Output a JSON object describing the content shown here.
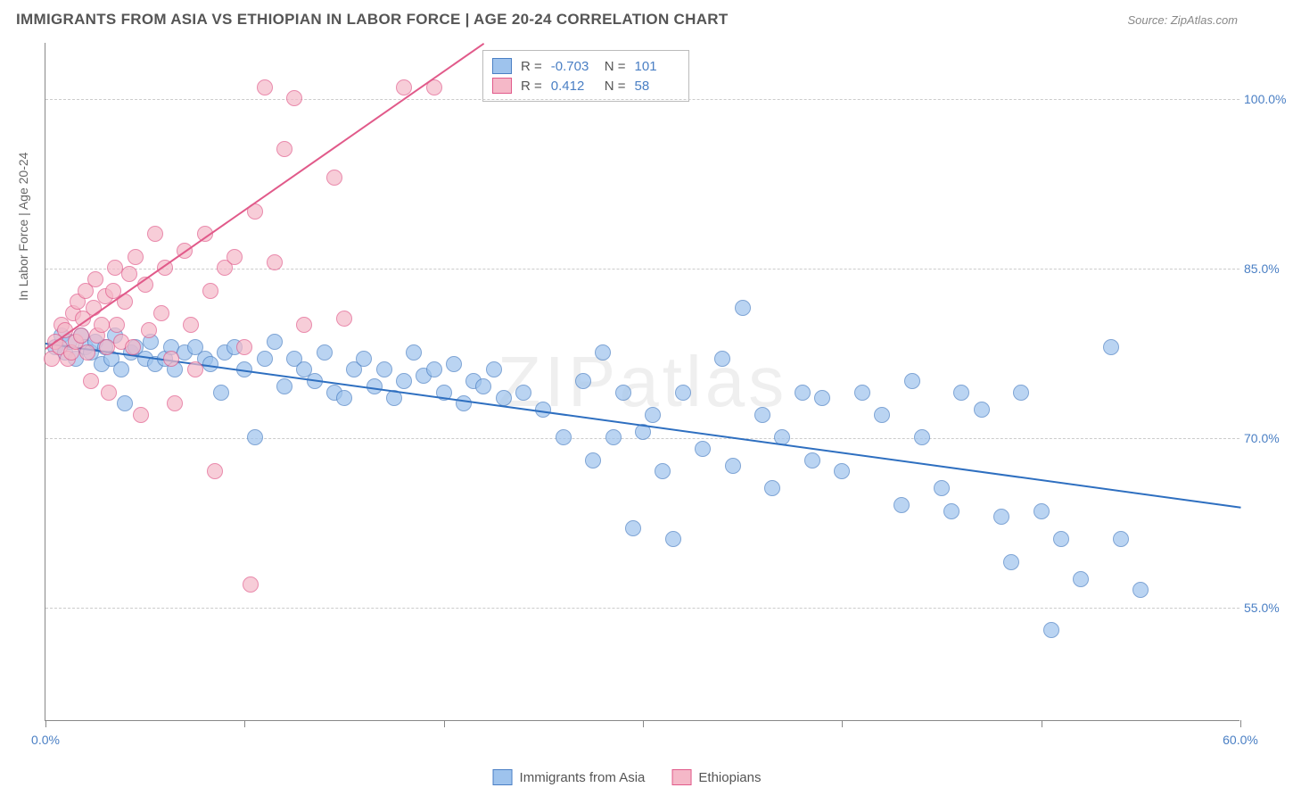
{
  "title": "IMMIGRANTS FROM ASIA VS ETHIOPIAN IN LABOR FORCE | AGE 20-24 CORRELATION CHART",
  "source": "Source: ZipAtlas.com",
  "watermark": "ZIPatlas",
  "ylabel": "In Labor Force | Age 20-24",
  "chart": {
    "type": "scatter",
    "background_color": "#ffffff",
    "grid_color": "#cccccc",
    "axis_color": "#888888",
    "xlim": [
      0,
      60
    ],
    "ylim": [
      45,
      105
    ],
    "ytick_values": [
      55,
      70,
      85,
      100
    ],
    "ytick_labels": [
      "55.0%",
      "70.0%",
      "85.0%",
      "100.0%"
    ],
    "xtick_values": [
      0,
      10,
      20,
      30,
      40,
      50,
      60
    ],
    "xtick_labels_shown": {
      "0": "0.0%",
      "60": "60.0%"
    },
    "marker_radius": 9,
    "marker_opacity": 0.35,
    "label_fontsize": 14,
    "label_color": "#4a7fc4",
    "series": [
      {
        "name": "Immigrants from Asia",
        "color_fill": "#9ec3ed",
        "color_stroke": "#4a7fc4",
        "R": "-0.703",
        "N": "101",
        "trend": {
          "x1": 0,
          "y1": 78.5,
          "x2": 60,
          "y2": 64,
          "color": "#2e6fc0",
          "width": 2
        },
        "points": [
          [
            0.5,
            78
          ],
          [
            0.8,
            79
          ],
          [
            1,
            77.5
          ],
          [
            1.2,
            78.5
          ],
          [
            1.5,
            77
          ],
          [
            1.8,
            79
          ],
          [
            2,
            78
          ],
          [
            2.3,
            77.5
          ],
          [
            2.5,
            78.5
          ],
          [
            2.8,
            76.5
          ],
          [
            3,
            78
          ],
          [
            3.3,
            77
          ],
          [
            3.5,
            79
          ],
          [
            3.8,
            76
          ],
          [
            4,
            73
          ],
          [
            4.3,
            77.5
          ],
          [
            4.5,
            78
          ],
          [
            5,
            77
          ],
          [
            5.3,
            78.5
          ],
          [
            5.5,
            76.5
          ],
          [
            6,
            77
          ],
          [
            6.3,
            78
          ],
          [
            6.5,
            76
          ],
          [
            7,
            77.5
          ],
          [
            7.5,
            78
          ],
          [
            8,
            77
          ],
          [
            8.3,
            76.5
          ],
          [
            8.8,
            74
          ],
          [
            9,
            77.5
          ],
          [
            9.5,
            78
          ],
          [
            10,
            76
          ],
          [
            10.5,
            70
          ],
          [
            11,
            77
          ],
          [
            11.5,
            78.5
          ],
          [
            12,
            74.5
          ],
          [
            12.5,
            77
          ],
          [
            13,
            76
          ],
          [
            13.5,
            75
          ],
          [
            14,
            77.5
          ],
          [
            14.5,
            74
          ],
          [
            15,
            73.5
          ],
          [
            15.5,
            76
          ],
          [
            16,
            77
          ],
          [
            16.5,
            74.5
          ],
          [
            17,
            76
          ],
          [
            17.5,
            73.5
          ],
          [
            18,
            75
          ],
          [
            18.5,
            77.5
          ],
          [
            19,
            75.5
          ],
          [
            19.5,
            76
          ],
          [
            20,
            74
          ],
          [
            20.5,
            76.5
          ],
          [
            21,
            73
          ],
          [
            21.5,
            75
          ],
          [
            22,
            74.5
          ],
          [
            22.5,
            76
          ],
          [
            23,
            73.5
          ],
          [
            24,
            74
          ],
          [
            25,
            72.5
          ],
          [
            26,
            70
          ],
          [
            27,
            75
          ],
          [
            27.5,
            68
          ],
          [
            28,
            77.5
          ],
          [
            28.5,
            70
          ],
          [
            29,
            74
          ],
          [
            29.5,
            62
          ],
          [
            30,
            70.5
          ],
          [
            30.5,
            72
          ],
          [
            31,
            67
          ],
          [
            31.5,
            61
          ],
          [
            32,
            74
          ],
          [
            33,
            69
          ],
          [
            34,
            77
          ],
          [
            34.5,
            67.5
          ],
          [
            35,
            81.5
          ],
          [
            36,
            72
          ],
          [
            36.5,
            65.5
          ],
          [
            37,
            70
          ],
          [
            38,
            74
          ],
          [
            38.5,
            68
          ],
          [
            39,
            73.5
          ],
          [
            40,
            67
          ],
          [
            41,
            74
          ],
          [
            42,
            72
          ],
          [
            43,
            64
          ],
          [
            43.5,
            75
          ],
          [
            44,
            70
          ],
          [
            45,
            65.5
          ],
          [
            45.5,
            63.5
          ],
          [
            46,
            74
          ],
          [
            47,
            72.5
          ],
          [
            48,
            63
          ],
          [
            48.5,
            59
          ],
          [
            49,
            74
          ],
          [
            50,
            63.5
          ],
          [
            50.5,
            53
          ],
          [
            51,
            61
          ],
          [
            52,
            57.5
          ],
          [
            53.5,
            78
          ],
          [
            54,
            61
          ],
          [
            55,
            56.5
          ]
        ]
      },
      {
        "name": "Ethiopians",
        "color_fill": "#f5b8c8",
        "color_stroke": "#e15a8a",
        "R": "0.412",
        "N": "58",
        "trend": {
          "x1": 0,
          "y1": 78,
          "x2": 22,
          "y2": 105,
          "color": "#e15a8a",
          "width": 2
        },
        "points": [
          [
            0.3,
            77
          ],
          [
            0.5,
            78.5
          ],
          [
            0.7,
            78
          ],
          [
            0.8,
            80
          ],
          [
            1,
            79.5
          ],
          [
            1.1,
            77
          ],
          [
            1.3,
            77.5
          ],
          [
            1.4,
            81
          ],
          [
            1.5,
            78.5
          ],
          [
            1.6,
            82
          ],
          [
            1.8,
            79
          ],
          [
            1.9,
            80.5
          ],
          [
            2,
            83
          ],
          [
            2.1,
            77.5
          ],
          [
            2.3,
            75
          ],
          [
            2.4,
            81.5
          ],
          [
            2.5,
            84
          ],
          [
            2.6,
            79
          ],
          [
            2.8,
            80
          ],
          [
            3,
            82.5
          ],
          [
            3.1,
            78
          ],
          [
            3.2,
            74
          ],
          [
            3.4,
            83
          ],
          [
            3.5,
            85
          ],
          [
            3.6,
            80
          ],
          [
            3.8,
            78.5
          ],
          [
            4,
            82
          ],
          [
            4.2,
            84.5
          ],
          [
            4.4,
            78
          ],
          [
            4.5,
            86
          ],
          [
            4.8,
            72
          ],
          [
            5,
            83.5
          ],
          [
            5.2,
            79.5
          ],
          [
            5.5,
            88
          ],
          [
            5.8,
            81
          ],
          [
            6,
            85
          ],
          [
            6.3,
            77
          ],
          [
            6.5,
            73
          ],
          [
            7,
            86.5
          ],
          [
            7.3,
            80
          ],
          [
            7.5,
            76
          ],
          [
            8,
            88
          ],
          [
            8.3,
            83
          ],
          [
            8.5,
            67
          ],
          [
            9,
            85
          ],
          [
            9.5,
            86
          ],
          [
            10,
            78
          ],
          [
            10.3,
            57
          ],
          [
            10.5,
            90
          ],
          [
            11,
            101
          ],
          [
            11.5,
            85.5
          ],
          [
            12,
            95.5
          ],
          [
            12.5,
            100
          ],
          [
            13,
            80
          ],
          [
            14.5,
            93
          ],
          [
            15,
            80.5
          ],
          [
            18,
            101
          ],
          [
            19.5,
            101
          ]
        ]
      }
    ]
  },
  "legend": {
    "items": [
      {
        "label": "Immigrants from Asia",
        "fill": "#9ec3ed",
        "stroke": "#4a7fc4"
      },
      {
        "label": "Ethiopians",
        "fill": "#f5b8c8",
        "stroke": "#e15a8a"
      }
    ]
  }
}
